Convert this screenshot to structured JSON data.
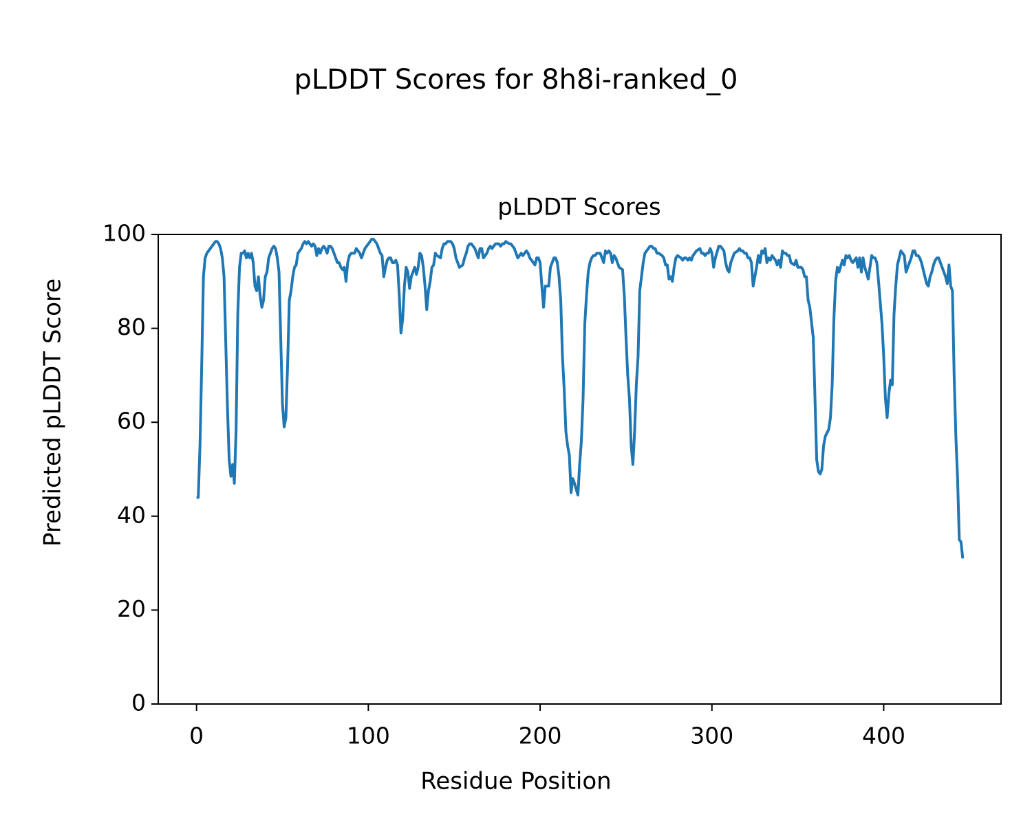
{
  "chart_data": {
    "type": "line",
    "title": "pLDDT Scores for 8h8i-ranked_0",
    "subtitle": "pLDDT Scores",
    "x_label": "Residue Position",
    "y_label": "Predicted pLDDT Score",
    "color": "#1f77b4",
    "xlim": [
      -22.3,
      468.3
    ],
    "xticks": [
      0,
      100,
      200,
      300,
      400
    ],
    "ylim": [
      0,
      100
    ],
    "yticks": [
      0,
      20,
      40,
      60,
      80,
      100
    ],
    "grid": false,
    "x": [
      0,
      1,
      2,
      3,
      4,
      5,
      6,
      7,
      8,
      9,
      10,
      11,
      12,
      13,
      14,
      15,
      16,
      17,
      18,
      19,
      20,
      21,
      22,
      23,
      24,
      25,
      26,
      27,
      28,
      29,
      30,
      31,
      32,
      33,
      34,
      35,
      36,
      37,
      38,
      39,
      40,
      41,
      42,
      43,
      44,
      45,
      46,
      47,
      48,
      49,
      50,
      51,
      52,
      53,
      54,
      55,
      56,
      57,
      58,
      59,
      60,
      61,
      62,
      63,
      64,
      65,
      66,
      67,
      68,
      69,
      70,
      71,
      72,
      73,
      74,
      75,
      76,
      77,
      78,
      79,
      80,
      81,
      82,
      83,
      84,
      85,
      86,
      87,
      88,
      89,
      90,
      91,
      92,
      93,
      94,
      95,
      96,
      97,
      98,
      99,
      100,
      101,
      102,
      103,
      104,
      105,
      106,
      107,
      108,
      109,
      110,
      111,
      112,
      113,
      114,
      115,
      116,
      117,
      118,
      119,
      120,
      121,
      122,
      123,
      124,
      125,
      126,
      127,
      128,
      129,
      130,
      131,
      132,
      133,
      134,
      135,
      136,
      137,
      138,
      139,
      140,
      142,
      143,
      144,
      145,
      146,
      147,
      148,
      149,
      150,
      151,
      152,
      153,
      155,
      156,
      157,
      158,
      159,
      160,
      161,
      162,
      163,
      164,
      165,
      166,
      167,
      169,
      170,
      171,
      172,
      173,
      174,
      175,
      176,
      177,
      178,
      179,
      180,
      182,
      183,
      184,
      185,
      186,
      187,
      188,
      189,
      190,
      191,
      192,
      193,
      194,
      196,
      197,
      198,
      199,
      200,
      201,
      202,
      203,
      204,
      205,
      206,
      208,
      209,
      210,
      211,
      212,
      213,
      214,
      215,
      216,
      217,
      218,
      219,
      220,
      222,
      223,
      224,
      225,
      226,
      227,
      228,
      229,
      230,
      231,
      232,
      233,
      235,
      236,
      237,
      238,
      239,
      240,
      241,
      242,
      243,
      244,
      245,
      246,
      248,
      249,
      250,
      251,
      252,
      253,
      254,
      255,
      256,
      257,
      258,
      260,
      261,
      262,
      263,
      264,
      265,
      266,
      267,
      268,
      269,
      271,
      272,
      273,
      274,
      275,
      276,
      277,
      278,
      279,
      280,
      282,
      283,
      284,
      285,
      286,
      287,
      288,
      289,
      290,
      291,
      293,
      294,
      295,
      296,
      297,
      298,
      299,
      300,
      301,
      302,
      304,
      305,
      306,
      307,
      308,
      309,
      310,
      311,
      312,
      313,
      315,
      316,
      317,
      318,
      319,
      320,
      321,
      322,
      323,
      324,
      326,
      327,
      328,
      329,
      330,
      331,
      332,
      333,
      334,
      335,
      337,
      338,
      339,
      340,
      341,
      342,
      343,
      344,
      345,
      346,
      348,
      349,
      350,
      351,
      352,
      353,
      354,
      355,
      356,
      357,
      359,
      360,
      361,
      362,
      363,
      364,
      365,
      366,
      368,
      369,
      370,
      371,
      372,
      373,
      374,
      376,
      377,
      378,
      379,
      380,
      381,
      382,
      384,
      385,
      386,
      387,
      388,
      389,
      391,
      392,
      393,
      394,
      395,
      396,
      397,
      399,
      400,
      401,
      402,
      403,
      404,
      405,
      406,
      407,
      408,
      409,
      410,
      411,
      412,
      413,
      414,
      415,
      416,
      417,
      418,
      419,
      420,
      421,
      422,
      423,
      424,
      425,
      426,
      427,
      428,
      429,
      430,
      431,
      432,
      433,
      434,
      435,
      436,
      437,
      438,
      439,
      440,
      441,
      442,
      443,
      444,
      445,
      446
    ],
    "values": [
      44,
      44,
      55,
      72,
      91,
      95,
      96,
      96.5,
      97,
      97.5,
      98,
      98.5,
      98.5,
      98,
      97,
      95,
      91,
      77,
      63,
      52,
      48.5,
      51,
      47,
      58,
      83,
      93,
      96,
      96,
      96.5,
      95,
      96,
      95,
      96,
      94,
      89,
      88,
      91,
      87,
      84.5,
      86,
      91,
      92,
      95,
      96,
      97,
      97.5,
      97,
      95,
      92,
      78,
      64,
      59,
      61,
      72,
      86,
      88,
      91,
      93,
      93.5,
      96,
      96.5,
      97,
      98,
      98.5,
      98,
      98.5,
      98,
      97.5,
      98,
      97.5,
      95.5,
      97,
      96,
      97,
      97.5,
      97,
      96,
      97.5,
      97.5,
      97,
      96,
      95,
      94,
      94,
      93,
      92.5,
      93,
      90,
      94,
      95.5,
      96,
      96,
      96,
      97,
      96.5,
      96,
      95,
      96,
      97,
      97.5,
      98,
      98.5,
      99,
      99,
      98.5,
      98,
      97,
      96,
      95.5,
      91,
      93,
      94.5,
      95,
      95,
      94,
      94,
      94.5,
      93.5,
      87,
      79,
      82,
      89,
      93,
      92,
      88.5,
      91,
      92,
      93,
      91.5,
      93,
      96,
      95.5,
      93,
      89,
      84,
      88,
      90,
      93,
      93.5,
      96,
      95.5,
      95,
      97,
      98,
      98,
      98.5,
      98.5,
      98.5,
      98,
      97,
      95,
      94,
      93,
      93.5,
      95,
      96,
      97.5,
      98,
      98,
      97.5,
      97,
      96,
      95,
      97,
      97,
      95,
      96,
      97,
      97.5,
      97,
      97.5,
      98,
      98,
      98,
      97.5,
      98,
      98,
      98.5,
      98,
      98,
      97.5,
      97,
      96,
      95,
      95.5,
      96,
      95.5,
      96,
      96.5,
      96,
      95,
      94,
      93.5,
      95,
      95,
      94,
      89,
      84.5,
      89,
      89,
      89,
      93,
      95,
      95,
      94,
      91,
      86,
      74,
      67,
      58,
      55,
      53,
      45,
      48,
      47,
      44.5,
      51,
      56,
      65,
      81,
      87,
      92,
      94,
      95,
      95.5,
      95.5,
      96,
      96,
      95,
      94,
      96.5,
      96,
      96.5,
      96,
      94,
      95.5,
      95,
      94,
      93,
      92.5,
      87,
      78,
      70,
      65,
      55,
      51,
      58,
      68,
      74,
      88,
      94,
      96,
      96.5,
      97,
      97.5,
      97.5,
      97,
      97,
      96,
      96,
      95.5,
      95,
      93.5,
      93.5,
      90.5,
      91,
      90,
      93,
      95,
      95.5,
      95,
      94.5,
      95,
      95,
      94.5,
      95,
      94.5,
      95.5,
      96,
      96.5,
      97,
      96,
      96,
      95.5,
      96,
      96,
      97,
      96,
      93,
      95,
      97.5,
      97.5,
      97,
      96.5,
      94,
      92.5,
      92,
      94,
      95,
      96,
      96.5,
      97,
      96.5,
      96.5,
      96,
      96,
      95,
      95,
      94,
      89,
      93,
      95.5,
      94,
      96.5,
      96,
      97,
      94,
      95,
      94.5,
      95.5,
      94.5,
      93.5,
      94.5,
      93,
      96.5,
      96,
      96,
      95.5,
      95.5,
      94,
      93.5,
      94.5,
      93,
      93,
      93,
      92.5,
      91,
      91,
      86,
      84.5,
      78,
      65,
      52,
      49.5,
      49,
      50,
      55,
      57,
      58.5,
      61,
      68,
      82,
      90,
      93,
      92,
      94.5,
      93.5,
      95.5,
      95,
      95.5,
      94.5,
      94,
      95,
      93,
      95,
      92,
      95,
      93,
      90.5,
      93,
      95.5,
      95,
      95,
      94,
      90,
      81,
      74,
      65,
      61,
      66,
      69,
      68,
      83,
      89,
      93.5,
      95,
      96.5,
      96,
      95.5,
      92,
      93,
      94,
      95,
      96.5,
      96.5,
      95.5,
      95.5,
      95,
      94,
      92.5,
      91,
      89.5,
      89,
      91,
      92,
      93.5,
      94.5,
      95,
      95,
      94,
      93,
      92,
      91,
      89.5,
      93.5,
      89,
      88,
      70,
      57,
      48,
      35,
      34.5,
      31
    ]
  }
}
